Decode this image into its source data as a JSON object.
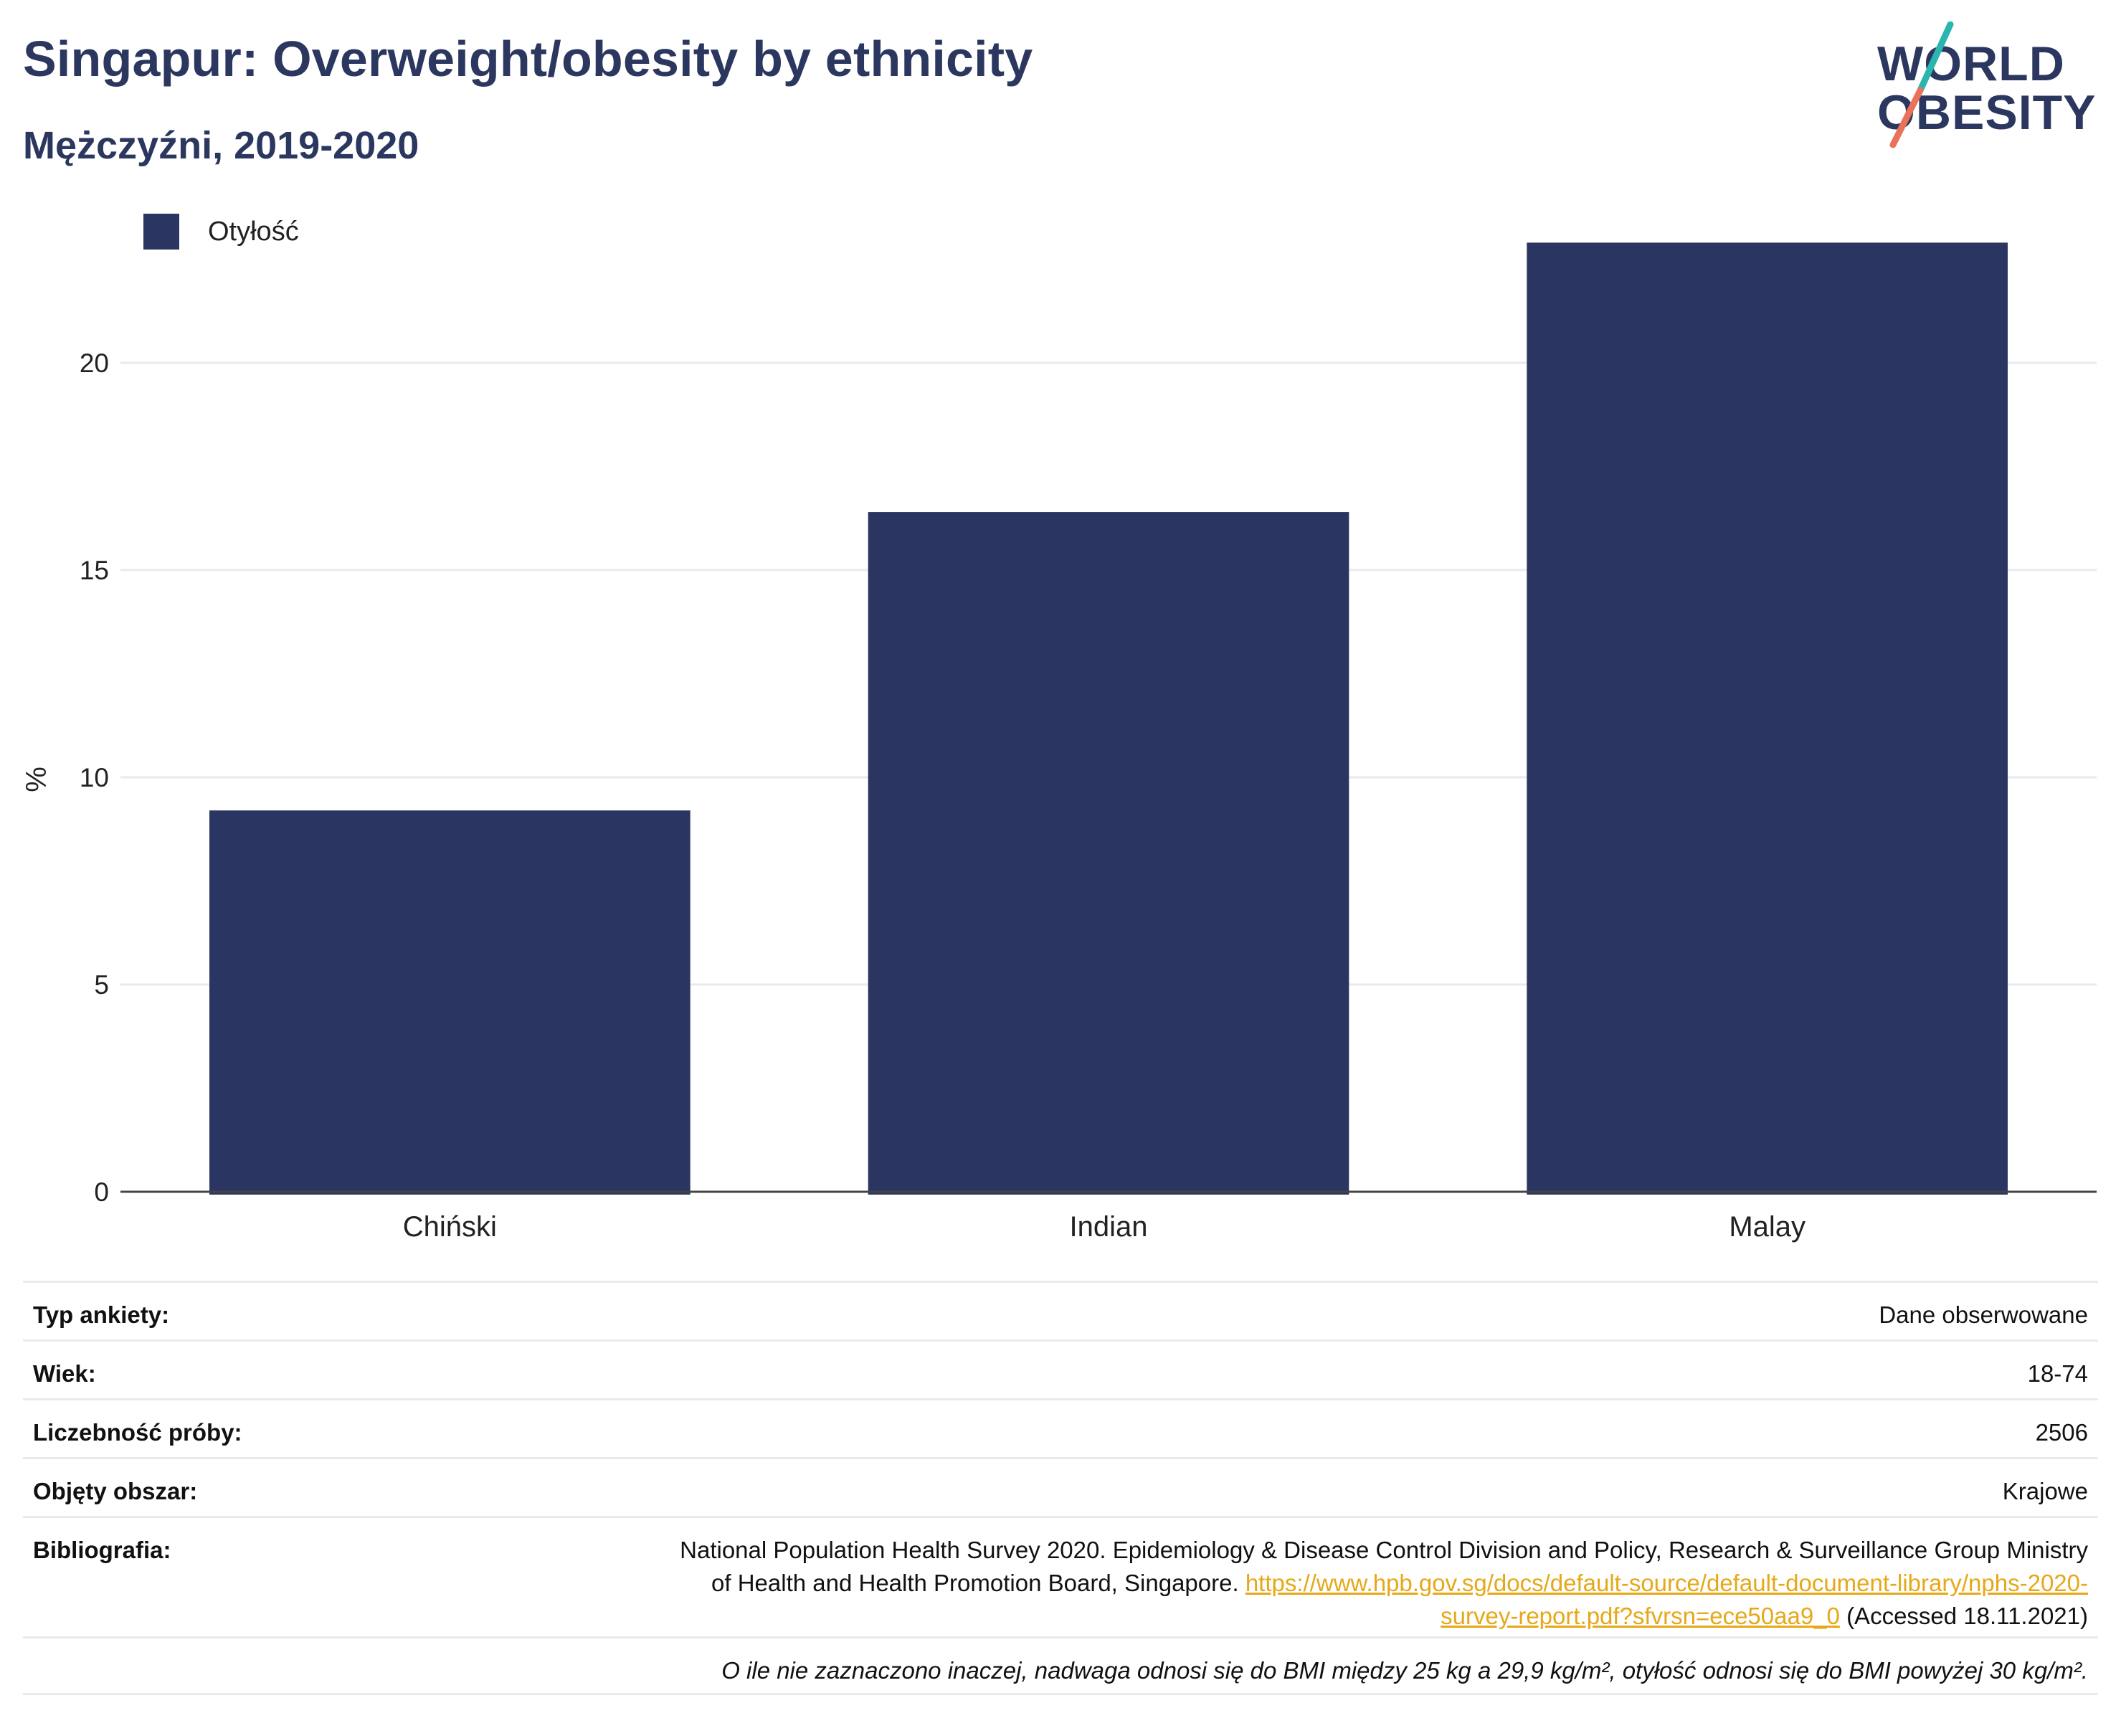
{
  "header": {
    "title": "Singapur: Overweight/obesity by ethnicity",
    "subtitle": "Mężczyźni, 2019-2020"
  },
  "logo": {
    "line1": "WORLD",
    "line2": "OBESITY"
  },
  "colors": {
    "bar": "#2a3561",
    "title": "#2b375f",
    "grid": "#e8eaf0",
    "accent_teal": "#2bb5b0",
    "accent_coral": "#e8735a",
    "link": "#e6a817"
  },
  "chart_data": {
    "type": "bar",
    "categories": [
      "Chiński",
      "Indian",
      "Malay"
    ],
    "series": [
      {
        "name": "Otyłość",
        "values": [
          9.2,
          16.4,
          22.9
        ]
      }
    ],
    "ylabel": "%",
    "xlabel": "",
    "ylim": [
      0,
      25
    ],
    "yticks": [
      0,
      5,
      10,
      15,
      20
    ],
    "grid": true,
    "legend_position": "top-left"
  },
  "metadata": {
    "rows": [
      {
        "key": "Typ ankiety:",
        "value": "Dane obserwowane"
      },
      {
        "key": "Wiek:",
        "value": "18-74"
      },
      {
        "key": "Liczebność próby:",
        "value": "2506"
      },
      {
        "key": "Objęty obszar:",
        "value": "Krajowe"
      }
    ],
    "bibliography": {
      "key": "Bibliografia:",
      "text_line1": "National Population Health Survey 2020. Epidemiology & Disease Control Division and Policy, Research & Surveillance Group Ministry",
      "text_line2": "of Health and Health Promotion Board, Singapore.",
      "link_line1": "https://www.hpb.gov.sg/docs/default-source/default-document-library/nphs-2020-",
      "link_line2": "survey-report.pdf?sfvrsn=ece50aa9_0",
      "accessed": "(Accessed 18.11.2021)"
    },
    "note": "O ile nie zaznaczono inaczej, nadwaga odnosi się do BMI między 25 kg a 29,9 kg/m², otyłość odnosi się do BMI powyżej 30 kg/m²."
  }
}
